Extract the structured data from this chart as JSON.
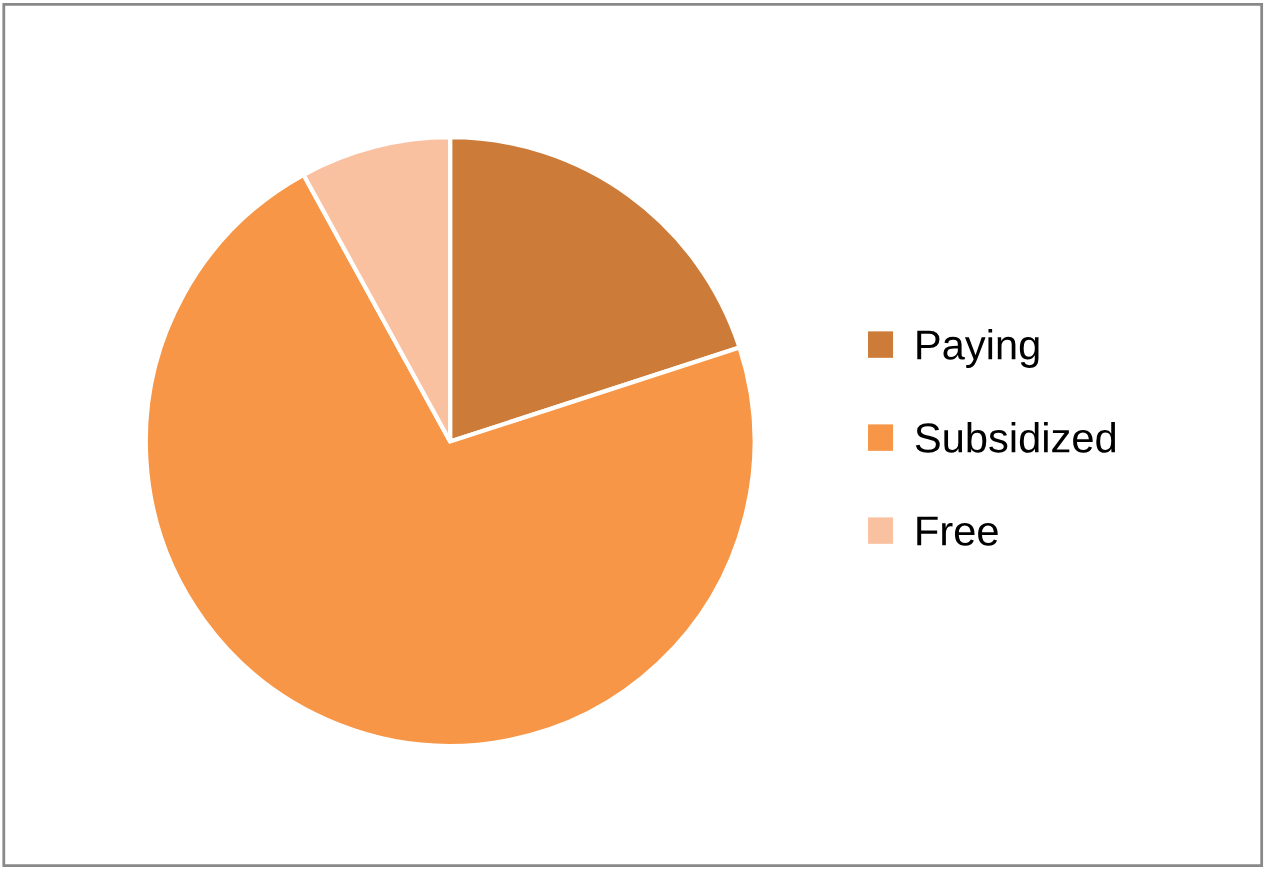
{
  "chart_data": {
    "type": "pie",
    "categories": [
      "Paying",
      "Subsidized",
      "Free"
    ],
    "values": [
      20,
      72,
      8
    ],
    "colors": [
      "#cc7b38",
      "#f79646",
      "#fac1a0"
    ],
    "legend": "right"
  }
}
